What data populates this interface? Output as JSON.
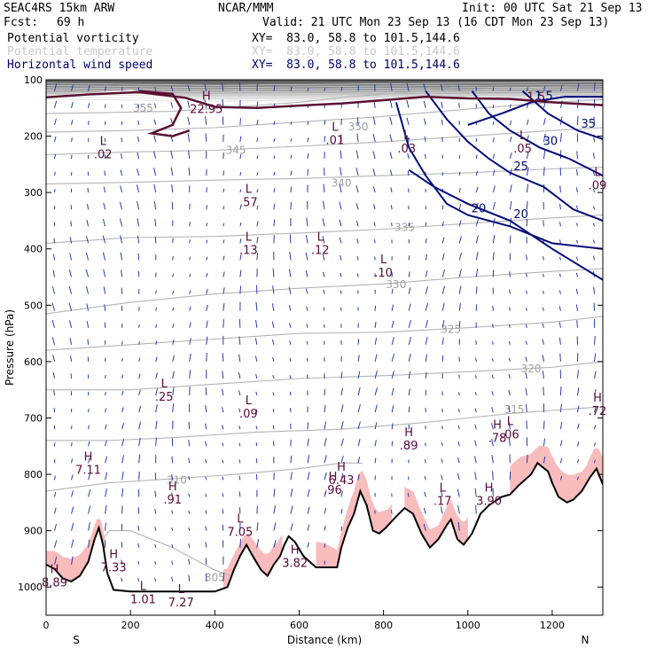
{
  "header": {
    "model": "SEAC4RS 15km ARW",
    "org": "NCAR/MMM",
    "init": "Init: 00 UTC Sat 21 Sep 13",
    "fcst_label": "Fcst:",
    "fcst_value": "69 h",
    "valid": "Valid: 21 UTC Mon 23 Sep 13 (16 CDT Mon 23 Sep 13)",
    "fields": [
      {
        "name": "Potential vorticity",
        "xy": "XY=  83.0, 58.8 to 101.5,144.6",
        "color": "#000000"
      },
      {
        "name": "Potential temperature",
        "xy": "XY=  83.0, 58.8 to 101.5,144.6",
        "color": "#c8c8c8"
      },
      {
        "name": "Horizontal wind speed",
        "xy": "XY=  83.0, 58.8 to 101.5,144.6",
        "color": "#00006e"
      }
    ]
  },
  "chart_data": {
    "type": "cross-section",
    "xlabel": "Distance (km)",
    "ylabel": "Pressure (hPa)",
    "xlim": [
      0,
      1320
    ],
    "ylim": [
      1050,
      100
    ],
    "x_ticks": [
      0,
      200,
      400,
      600,
      800,
      1000,
      1200
    ],
    "y_ticks": [
      100,
      200,
      300,
      400,
      500,
      600,
      700,
      800,
      900,
      1000
    ],
    "endpoints": {
      "left": "S",
      "right": "N"
    },
    "colors": {
      "theta": "#b4b4b4",
      "wind": "#000b78",
      "pv": "#5a1030",
      "terrain": "#000000",
      "moist": "#f8bcbc",
      "vectors": "#2a3aa8",
      "hl": "#5a0a3a"
    },
    "terrain": [
      [
        0,
        960
      ],
      [
        20,
        968
      ],
      [
        40,
        985
      ],
      [
        60,
        990
      ],
      [
        80,
        980
      ],
      [
        100,
        955
      ],
      [
        115,
        915
      ],
      [
        125,
        895
      ],
      [
        135,
        925
      ],
      [
        145,
        975
      ],
      [
        160,
        1005
      ],
      [
        200,
        1008
      ],
      [
        300,
        1008
      ],
      [
        400,
        1008
      ],
      [
        430,
        1000
      ],
      [
        445,
        970
      ],
      [
        460,
        945
      ],
      [
        475,
        925
      ],
      [
        490,
        945
      ],
      [
        510,
        970
      ],
      [
        525,
        980
      ],
      [
        540,
        960
      ],
      [
        555,
        945
      ],
      [
        565,
        925
      ],
      [
        575,
        910
      ],
      [
        590,
        920
      ],
      [
        610,
        945
      ],
      [
        640,
        965
      ],
      [
        690,
        965
      ],
      [
        700,
        930
      ],
      [
        715,
        895
      ],
      [
        730,
        870
      ],
      [
        745,
        830
      ],
      [
        760,
        855
      ],
      [
        775,
        900
      ],
      [
        790,
        905
      ],
      [
        805,
        895
      ],
      [
        830,
        875
      ],
      [
        850,
        860
      ],
      [
        870,
        870
      ],
      [
        890,
        905
      ],
      [
        910,
        930
      ],
      [
        930,
        915
      ],
      [
        950,
        890
      ],
      [
        960,
        880
      ],
      [
        975,
        915
      ],
      [
        990,
        925
      ],
      [
        1010,
        905
      ],
      [
        1030,
        870
      ],
      [
        1050,
        855
      ],
      [
        1080,
        840
      ],
      [
        1100,
        836
      ],
      [
        1120,
        820
      ],
      [
        1150,
        800
      ],
      [
        1165,
        780
      ],
      [
        1190,
        795
      ],
      [
        1200,
        815
      ],
      [
        1215,
        840
      ],
      [
        1235,
        850
      ],
      [
        1250,
        845
      ],
      [
        1270,
        830
      ],
      [
        1290,
        805
      ],
      [
        1305,
        790
      ],
      [
        1320,
        818
      ]
    ],
    "theta_contours": [
      {
        "label": "355",
        "label_at": [
          230,
          150
        ],
        "points": [
          [
            0,
            160
          ],
          [
            150,
            158
          ],
          [
            300,
            156
          ],
          [
            450,
            148
          ],
          [
            600,
            140
          ],
          [
            720,
            130
          ],
          [
            900,
            120
          ],
          [
            1100,
            115
          ],
          [
            1320,
            112
          ]
        ]
      },
      {
        "label": "350",
        "label_at": [
          740,
          183
        ],
        "points": [
          [
            0,
            193
          ],
          [
            200,
            190
          ],
          [
            400,
            185
          ],
          [
            600,
            175
          ],
          [
            800,
            165
          ],
          [
            1000,
            152
          ],
          [
            1200,
            140
          ],
          [
            1320,
            135
          ]
        ]
      },
      {
        "label": "345",
        "label_at": [
          450,
          225
        ],
        "points": [
          [
            0,
            233
          ],
          [
            200,
            228
          ],
          [
            400,
            225
          ],
          [
            600,
            218
          ],
          [
            800,
            210
          ],
          [
            1000,
            200
          ],
          [
            1200,
            190
          ],
          [
            1320,
            185
          ]
        ]
      },
      {
        "label": "340",
        "label_at": [
          700,
          283
        ],
        "points": [
          [
            0,
            285
          ],
          [
            200,
            282
          ],
          [
            400,
            278
          ],
          [
            600,
            275
          ],
          [
            800,
            270
          ],
          [
            1000,
            265
          ],
          [
            1200,
            258
          ],
          [
            1320,
            255
          ]
        ]
      },
      {
        "label": "335",
        "label_at": [
          850,
          362
        ],
        "points": [
          [
            0,
            390
          ],
          [
            200,
            380
          ],
          [
            400,
            378
          ],
          [
            600,
            372
          ],
          [
            800,
            365
          ],
          [
            1000,
            355
          ],
          [
            1200,
            345
          ],
          [
            1320,
            340
          ]
        ]
      },
      {
        "label": "330",
        "label_at": [
          830,
          463
        ],
        "points": [
          [
            0,
            515
          ],
          [
            200,
            495
          ],
          [
            400,
            480
          ],
          [
            600,
            470
          ],
          [
            800,
            462
          ],
          [
            1000,
            450
          ],
          [
            1200,
            440
          ],
          [
            1320,
            435
          ]
        ]
      },
      {
        "label": "325",
        "label_at": [
          960,
          543
        ],
        "points": [
          [
            0,
            580
          ],
          [
            200,
            570
          ],
          [
            400,
            560
          ],
          [
            600,
            550
          ],
          [
            800,
            548
          ],
          [
            1000,
            540
          ],
          [
            1200,
            530
          ],
          [
            1320,
            520
          ]
        ]
      },
      {
        "label": "320",
        "label_at": [
          1150,
          613
        ],
        "points": [
          [
            0,
            650
          ],
          [
            200,
            650
          ],
          [
            400,
            640
          ],
          [
            600,
            630
          ],
          [
            800,
            625
          ],
          [
            1000,
            618
          ],
          [
            1200,
            610
          ],
          [
            1320,
            600
          ]
        ]
      },
      {
        "label": "315",
        "label_at": [
          1110,
          685
        ],
        "points": [
          [
            0,
            740
          ],
          [
            150,
            740
          ],
          [
            300,
            735
          ],
          [
            500,
            725
          ],
          [
            700,
            720
          ],
          [
            900,
            708
          ],
          [
            1100,
            692
          ],
          [
            1320,
            680
          ]
        ]
      },
      {
        "label": "310",
        "label_at": [
          310,
          810
        ],
        "points": [
          [
            0,
            830
          ],
          [
            150,
            815
          ],
          [
            300,
            808
          ],
          [
            450,
            800
          ],
          [
            600,
            790
          ],
          [
            700,
            780
          ],
          [
            750,
            780
          ]
        ]
      },
      {
        "label": "305",
        "label_at": [
          400,
          983
        ],
        "points": [
          [
            110,
            940
          ],
          [
            150,
            900
          ],
          [
            200,
            900
          ],
          [
            300,
            930
          ],
          [
            400,
            970
          ],
          [
            440,
            980
          ]
        ]
      }
    ],
    "wind_contours": [
      {
        "label": "1.5",
        "points": [
          [
            1000,
            180
          ],
          [
            1080,
            160
          ],
          [
            1150,
            140
          ],
          [
            1230,
            130
          ],
          [
            1320,
            130
          ]
        ]
      },
      {
        "label": "20",
        "points": [
          [
            830,
            140
          ],
          [
            860,
            220
          ],
          [
            900,
            270
          ],
          [
            950,
            320
          ],
          [
            1000,
            340
          ],
          [
            1100,
            360
          ],
          [
            1200,
            390
          ],
          [
            1320,
            400
          ]
        ]
      },
      {
        "label": "25",
        "points": [
          [
            900,
            120
          ],
          [
            950,
            170
          ],
          [
            1000,
            210
          ],
          [
            1050,
            240
          ],
          [
            1100,
            265
          ],
          [
            1180,
            290
          ],
          [
            1250,
            330
          ],
          [
            1320,
            350
          ]
        ]
      },
      {
        "label": "30",
        "points": [
          [
            1010,
            120
          ],
          [
            1050,
            160
          ],
          [
            1100,
            190
          ],
          [
            1170,
            220
          ],
          [
            1240,
            240
          ],
          [
            1320,
            270
          ]
        ]
      },
      {
        "label": "35",
        "points": [
          [
            1130,
            120
          ],
          [
            1190,
            160
          ],
          [
            1260,
            190
          ],
          [
            1320,
            205
          ]
        ]
      },
      {
        "label": "20",
        "points": [
          [
            860,
            260
          ],
          [
            920,
            290
          ],
          [
            1000,
            320
          ],
          [
            1100,
            350
          ],
          [
            1200,
            400
          ],
          [
            1320,
            455
          ]
        ]
      }
    ],
    "pv_contours": [
      {
        "label": "1.5",
        "points": [
          [
            0,
            131
          ],
          [
            100,
            126
          ],
          [
            220,
            122
          ],
          [
            330,
            132
          ],
          [
            400,
            148
          ],
          [
            500,
            150
          ],
          [
            620,
            145
          ],
          [
            700,
            142
          ],
          [
            820,
            135
          ],
          [
            900,
            130
          ],
          [
            1000,
            133
          ],
          [
            1100,
            134
          ],
          [
            1200,
            140
          ],
          [
            1320,
            145
          ]
        ]
      },
      {
        "label": "",
        "points": [
          [
            220,
            120
          ],
          [
            300,
            125
          ],
          [
            320,
            150
          ],
          [
            300,
            180
          ],
          [
            250,
            195
          ],
          [
            300,
            200
          ],
          [
            340,
            190
          ]
        ]
      }
    ],
    "hl_labels": [
      {
        "kind": "L",
        "value": ".02",
        "x": 135,
        "y": 225
      },
      {
        "kind": "H",
        "value": "22.95",
        "x": 380,
        "y": 145
      },
      {
        "kind": "L",
        "value": ".01",
        "x": 685,
        "y": 200
      },
      {
        "kind": "L",
        "value": ".03",
        "x": 855,
        "y": 215
      },
      {
        "kind": "L",
        "value": ".05",
        "x": 1130,
        "y": 215
      },
      {
        "kind": "L",
        "value": ".09",
        "x": 1325,
        "y": 280
      },
      {
        "kind": "L",
        "value": ".57",
        "x": 480,
        "y": 310
      },
      {
        "kind": "L",
        "value": ".13",
        "x": 480,
        "y": 395
      },
      {
        "kind": "L",
        "value": ".12",
        "x": 650,
        "y": 395
      },
      {
        "kind": "L",
        "value": ".10",
        "x": 800,
        "y": 435
      },
      {
        "kind": "L",
        "value": ".25",
        "x": 280,
        "y": 655
      },
      {
        "kind": "L",
        "value": ".09",
        "x": 480,
        "y": 685
      },
      {
        "kind": "H",
        "value": "7.11",
        "x": 100,
        "y": 785
      },
      {
        "kind": "H",
        "value": ".91",
        "x": 300,
        "y": 838
      },
      {
        "kind": "H",
        "value": ".89",
        "x": 860,
        "y": 742
      },
      {
        "kind": "H",
        "value": ".78",
        "x": 1070,
        "y": 728
      },
      {
        "kind": "L",
        "value": ".06",
        "x": 1100,
        "y": 722
      },
      {
        "kind": "H",
        "value": ".72",
        "x": 1310,
        "y": 680
      },
      {
        "kind": "H",
        "value": "6.43",
        "x": 700,
        "y": 803
      },
      {
        "kind": "H",
        "value": ".96",
        "x": 680,
        "y": 820
      },
      {
        "kind": "L",
        "value": ".17",
        "x": 940,
        "y": 840
      },
      {
        "kind": "H",
        "value": "3.90",
        "x": 1050,
        "y": 840
      },
      {
        "kind": "L",
        "value": "7.05",
        "x": 460,
        "y": 895
      },
      {
        "kind": "H",
        "value": "3.82",
        "x": 590,
        "y": 950
      },
      {
        "kind": "H",
        "value": "7.33",
        "x": 160,
        "y": 958
      },
      {
        "kind": "L",
        "value": "7.27",
        "x": 320,
        "y": 1020
      },
      {
        "kind": "H",
        "value": "8.89",
        "x": 20,
        "y": 985
      },
      {
        "kind": "L",
        "value": "1.01",
        "x": 230,
        "y": 1015
      }
    ]
  }
}
